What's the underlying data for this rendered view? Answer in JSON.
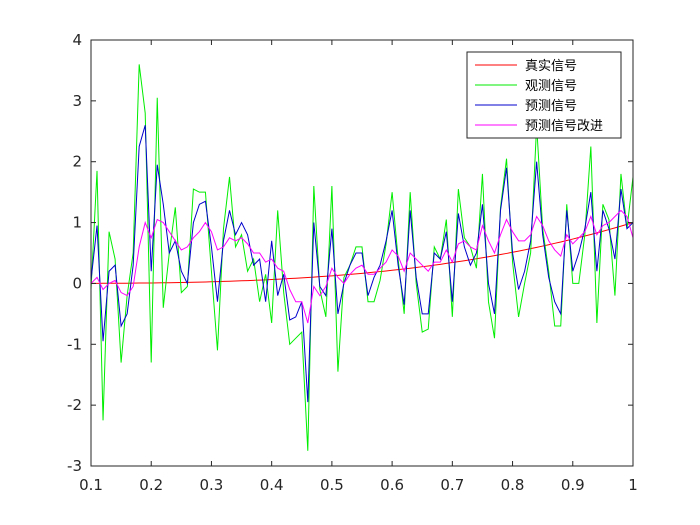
{
  "chart_data": {
    "type": "line",
    "title": "",
    "xlabel": "",
    "ylabel": "",
    "xlim": [
      0.1,
      1.0
    ],
    "ylim": [
      -3,
      4
    ],
    "grid": false,
    "legend_position": "top-right",
    "x_ticks": [
      "0.1",
      "0.2",
      "0.3",
      "0.4",
      "0.5",
      "0.6",
      "0.7",
      "0.8",
      "0.9",
      "1"
    ],
    "y_ticks": [
      "-3",
      "-2",
      "-1",
      "0",
      "1",
      "2",
      "3",
      "4"
    ],
    "x": [
      0.1,
      0.11,
      0.12,
      0.13,
      0.14,
      0.15,
      0.16,
      0.17,
      0.18,
      0.19,
      0.2,
      0.21,
      0.22,
      0.23,
      0.24,
      0.25,
      0.26,
      0.27,
      0.28,
      0.29,
      0.3,
      0.31,
      0.32,
      0.33,
      0.34,
      0.35,
      0.36,
      0.37,
      0.38,
      0.39,
      0.4,
      0.41,
      0.42,
      0.43,
      0.44,
      0.45,
      0.46,
      0.47,
      0.48,
      0.49,
      0.5,
      0.51,
      0.52,
      0.53,
      0.54,
      0.55,
      0.56,
      0.57,
      0.58,
      0.59,
      0.6,
      0.61,
      0.62,
      0.63,
      0.64,
      0.65,
      0.66,
      0.67,
      0.68,
      0.69,
      0.7,
      0.71,
      0.72,
      0.73,
      0.74,
      0.75,
      0.76,
      0.77,
      0.78,
      0.79,
      0.8,
      0.81,
      0.82,
      0.83,
      0.84,
      0.85,
      0.86,
      0.87,
      0.88,
      0.89,
      0.9,
      0.91,
      0.92,
      0.93,
      0.94,
      0.95,
      0.96,
      0.97,
      0.98,
      0.99,
      1.0
    ],
    "series": [
      {
        "name": "真实信号",
        "color": "#ff0000",
        "values": [
          0.001,
          0.001,
          0.002,
          0.002,
          0.003,
          0.003,
          0.004,
          0.005,
          0.006,
          0.007,
          0.008,
          0.009,
          0.011,
          0.012,
          0.014,
          0.016,
          0.018,
          0.02,
          0.022,
          0.024,
          0.027,
          0.03,
          0.033,
          0.036,
          0.039,
          0.043,
          0.047,
          0.051,
          0.055,
          0.059,
          0.064,
          0.069,
          0.074,
          0.08,
          0.085,
          0.091,
          0.097,
          0.104,
          0.111,
          0.118,
          0.125,
          0.133,
          0.141,
          0.149,
          0.157,
          0.166,
          0.176,
          0.185,
          0.195,
          0.205,
          0.216,
          0.227,
          0.238,
          0.25,
          0.262,
          0.275,
          0.287,
          0.301,
          0.314,
          0.329,
          0.343,
          0.358,
          0.373,
          0.389,
          0.405,
          0.422,
          0.439,
          0.456,
          0.475,
          0.493,
          0.512,
          0.531,
          0.551,
          0.572,
          0.593,
          0.614,
          0.636,
          0.659,
          0.681,
          0.705,
          0.729,
          0.754,
          0.779,
          0.804,
          0.831,
          0.857,
          0.885,
          0.913,
          0.941,
          0.97,
          1.0
        ]
      },
      {
        "name": "观测信号",
        "color": "#00ee00",
        "values": [
          -0.1,
          1.85,
          -2.25,
          0.85,
          0.4,
          -1.3,
          -0.2,
          0.5,
          3.6,
          2.8,
          -1.3,
          3.05,
          -0.4,
          0.5,
          1.25,
          -0.15,
          -0.05,
          1.55,
          1.5,
          1.5,
          0.2,
          -1.1,
          0.9,
          1.75,
          0.6,
          0.8,
          0.2,
          0.4,
          -0.3,
          0.15,
          -0.65,
          1.2,
          -0.15,
          -1.0,
          -0.9,
          -0.8,
          -2.75,
          1.6,
          -0.1,
          -0.55,
          1.6,
          -1.45,
          0.1,
          0.3,
          0.6,
          0.6,
          -0.3,
          -0.3,
          0.05,
          0.65,
          1.5,
          0.4,
          -0.5,
          1.5,
          0.0,
          -0.8,
          -0.75,
          0.6,
          0.4,
          1.05,
          -0.55,
          1.55,
          0.75,
          0.6,
          0.25,
          1.8,
          -0.3,
          -0.9,
          1.25,
          2.05,
          0.35,
          -0.55,
          0.0,
          0.5,
          2.6,
          0.9,
          0.2,
          -0.7,
          -0.7,
          1.3,
          0.0,
          0.0,
          0.8,
          2.25,
          -0.65,
          1.3,
          1.05,
          -0.2,
          1.8,
          0.9,
          1.75
        ]
      },
      {
        "name": "预测信号",
        "color": "#0000cc",
        "values": [
          0.05,
          0.95,
          -0.95,
          0.2,
          0.3,
          -0.7,
          -0.5,
          0.3,
          2.25,
          2.6,
          0.2,
          1.95,
          1.3,
          0.5,
          0.7,
          0.2,
          0.0,
          1.0,
          1.3,
          1.35,
          0.6,
          -0.3,
          0.7,
          1.2,
          0.8,
          1.0,
          0.8,
          0.3,
          0.4,
          -0.3,
          0.7,
          -0.2,
          0.15,
          -0.6,
          -0.55,
          -0.3,
          -1.95,
          1.0,
          -0.05,
          -0.2,
          0.9,
          -0.5,
          0.0,
          0.3,
          0.5,
          0.5,
          -0.2,
          0.1,
          0.3,
          0.7,
          1.2,
          0.3,
          -0.35,
          1.2,
          0.1,
          -0.5,
          -0.5,
          0.5,
          0.4,
          0.85,
          -0.3,
          1.15,
          0.6,
          0.3,
          0.5,
          1.3,
          0.0,
          -0.5,
          1.2,
          1.9,
          0.5,
          -0.1,
          0.2,
          0.7,
          2.0,
          0.8,
          0.1,
          -0.3,
          -0.5,
          1.2,
          0.2,
          0.5,
          0.9,
          1.5,
          0.2,
          1.2,
          0.9,
          0.4,
          1.55,
          0.9,
          1.0
        ]
      },
      {
        "name": "预测信号改进",
        "color": "#ff00ff",
        "values": [
          0.0,
          0.1,
          -0.1,
          0.0,
          0.05,
          -0.15,
          -0.2,
          -0.05,
          0.6,
          1.0,
          0.75,
          1.05,
          1.0,
          0.85,
          0.7,
          0.55,
          0.6,
          0.75,
          0.85,
          1.0,
          0.85,
          0.55,
          0.6,
          0.75,
          0.7,
          0.75,
          0.65,
          0.5,
          0.5,
          0.35,
          0.4,
          0.25,
          0.2,
          -0.1,
          -0.3,
          -0.3,
          -0.65,
          -0.05,
          -0.2,
          -0.05,
          0.25,
          0.1,
          0.0,
          0.15,
          0.25,
          0.3,
          0.15,
          0.15,
          0.25,
          0.35,
          0.55,
          0.45,
          0.2,
          0.5,
          0.4,
          0.3,
          0.2,
          0.35,
          0.35,
          0.55,
          0.35,
          0.65,
          0.7,
          0.6,
          0.55,
          0.95,
          0.7,
          0.5,
          0.8,
          1.05,
          0.85,
          0.7,
          0.7,
          0.8,
          1.1,
          0.95,
          0.7,
          0.55,
          0.45,
          0.8,
          0.65,
          0.75,
          0.85,
          1.1,
          0.8,
          0.95,
          1.0,
          1.1,
          1.2,
          1.1,
          0.75
        ]
      }
    ]
  }
}
